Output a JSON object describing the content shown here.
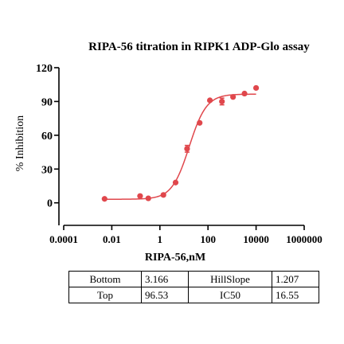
{
  "chart_data": {
    "type": "scatter",
    "title": "RIPA-56 titration in RIPK1 ADP-Glo assay",
    "xlabel": "RIPA-56,nM",
    "ylabel": "% Inhibition",
    "x_scale": "log",
    "xlim": [
      0.0001,
      1000000
    ],
    "ylim": [
      -20,
      120
    ],
    "x_tick_values": [
      0.0001,
      0.01,
      1,
      100,
      10000,
      1000000
    ],
    "x_tick_labels": [
      "0.0001",
      "0.01",
      "1",
      "100",
      "10000",
      "1000000"
    ],
    "y_tick_values": [
      0,
      30,
      60,
      90,
      120
    ],
    "y_tick_labels": [
      "0",
      "30",
      "60",
      "90",
      "120"
    ],
    "points": [
      {
        "x": 0.005,
        "y": 3.5,
        "err": 0
      },
      {
        "x": 0.15,
        "y": 6,
        "err": 0
      },
      {
        "x": 0.33,
        "y": 4,
        "err": 0
      },
      {
        "x": 1.4,
        "y": 7,
        "err": 0
      },
      {
        "x": 4.5,
        "y": 18,
        "err": 0
      },
      {
        "x": 13.5,
        "y": 48,
        "err": 3
      },
      {
        "x": 45,
        "y": 71,
        "err": 0
      },
      {
        "x": 120,
        "y": 91,
        "err": 0
      },
      {
        "x": 380,
        "y": 90,
        "err": 3
      },
      {
        "x": 1100,
        "y": 94,
        "err": 0
      },
      {
        "x": 3300,
        "y": 97,
        "err": 0
      },
      {
        "x": 10000,
        "y": 102,
        "err": 0
      }
    ],
    "fit": {
      "bottom": 3.166,
      "top": 96.53,
      "ic50": 16.55,
      "hillslope": 1.207
    },
    "color": "#e0474c",
    "grid": false
  },
  "params_table": [
    {
      "label1": "Bottom",
      "value1": "3.166",
      "label2": "HillSlope",
      "value2": "1.207"
    },
    {
      "label1": "Top",
      "value1": "96.53",
      "label2": "IC50",
      "value2": "16.55"
    }
  ]
}
